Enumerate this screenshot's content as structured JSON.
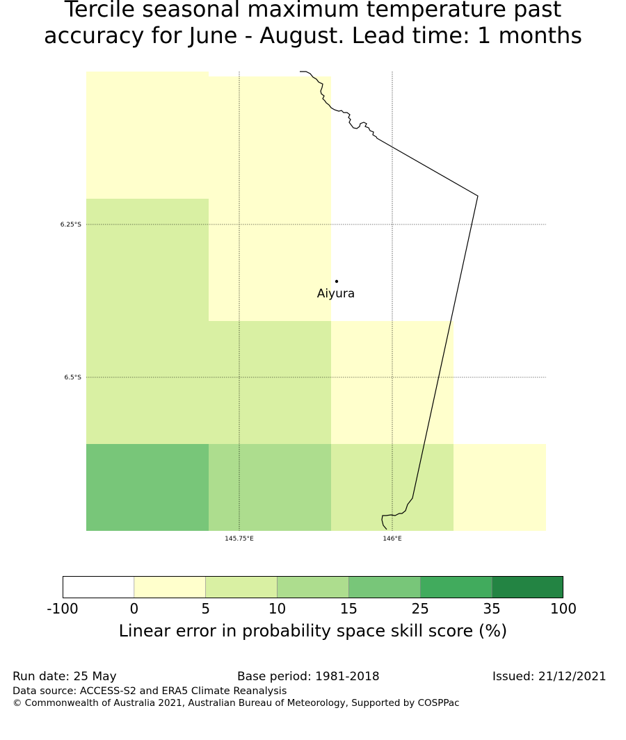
{
  "title": {
    "line1": "Tercile seasonal maximum temperature past",
    "line2": "accuracy for June - August. Lead time: 1 months"
  },
  "map": {
    "lat_labels": [
      "6.25°S",
      "6.5°S"
    ],
    "lon_labels": [
      "145.75°E",
      "146°E"
    ],
    "location": {
      "name": "Aiyura"
    }
  },
  "colorbar": {
    "ticks": [
      "-100",
      "0",
      "5",
      "10",
      "15",
      "25",
      "35",
      "100"
    ],
    "colors": [
      "#ffffff",
      "#ffffcc",
      "#d9f0a3",
      "#addd8e",
      "#78c679",
      "#41ab5d",
      "#238443"
    ],
    "label": "Linear error in probability space skill score (%)"
  },
  "footer": {
    "run_date": "Run date: 25 May",
    "base_period": "Base period: 1981-2018",
    "issued": "Issued: 21/12/2021",
    "data_source": "Data source: ACCESS-S2 and ERA5 Climate Reanalysis",
    "copyright": "© Commonwealth of Australia 2021, Australian Bureau of Meteorology, Supported by COSPPac"
  }
}
